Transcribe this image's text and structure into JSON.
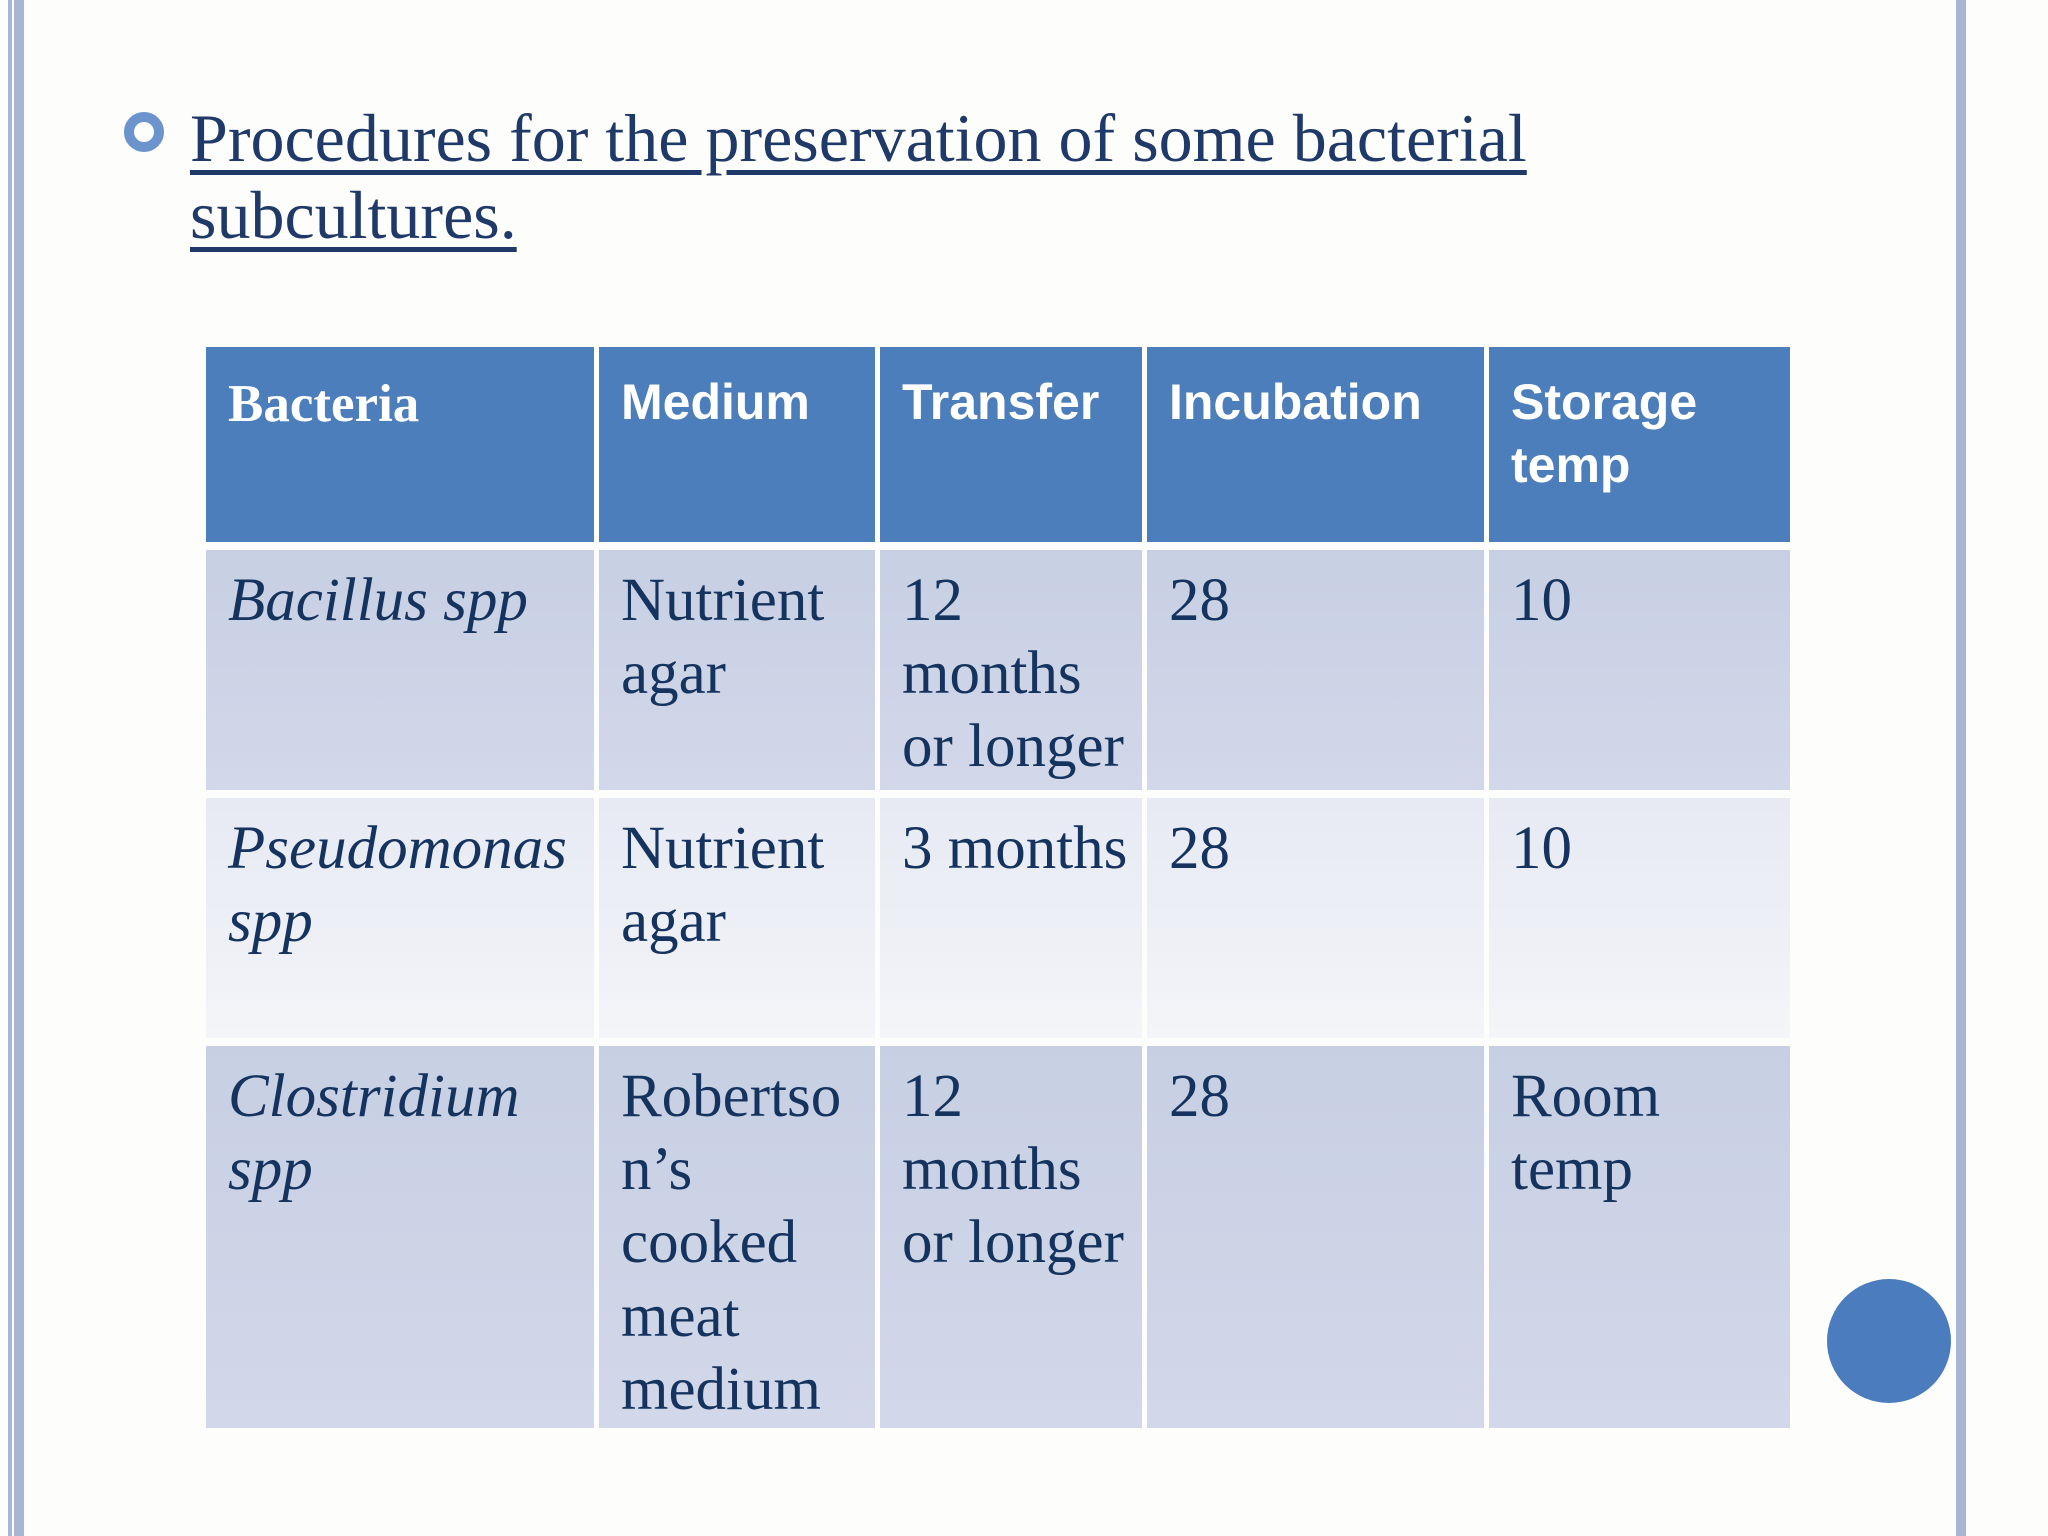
{
  "slide": {
    "title": "Procedures for the preservation of some bacterial\nsubcultures."
  },
  "table": {
    "headers": [
      "Bacteria",
      "Medium",
      "Transfer",
      "Incubation",
      "Storage temp"
    ],
    "rows": [
      [
        "Bacillus spp",
        "Nutrient\nagar",
        "12\nmonths\nor longer",
        "28",
        "10"
      ],
      [
        "Pseudomonas\nspp",
        "Nutrient\nagar",
        "3 months",
        "28",
        "10"
      ],
      [
        "Clostridium\nspp",
        "Robertso\nn’s\ncooked\nmeat\nmedium",
        "12\nmonths\nor longer",
        "28",
        "Room\ntemp"
      ]
    ]
  },
  "colors": {
    "header_bg": "#4d7ebc",
    "header_text": "#ffffff",
    "row_odd_bg": "#ccd3e6",
    "row_even_bg": "#e9ecf4",
    "body_text": "#15335f",
    "title_color": "#1f3a68",
    "bullet_ring": "#6b94cc",
    "accent_circle": "#4a7cbe",
    "border_stripe": "#a9b6d3"
  }
}
